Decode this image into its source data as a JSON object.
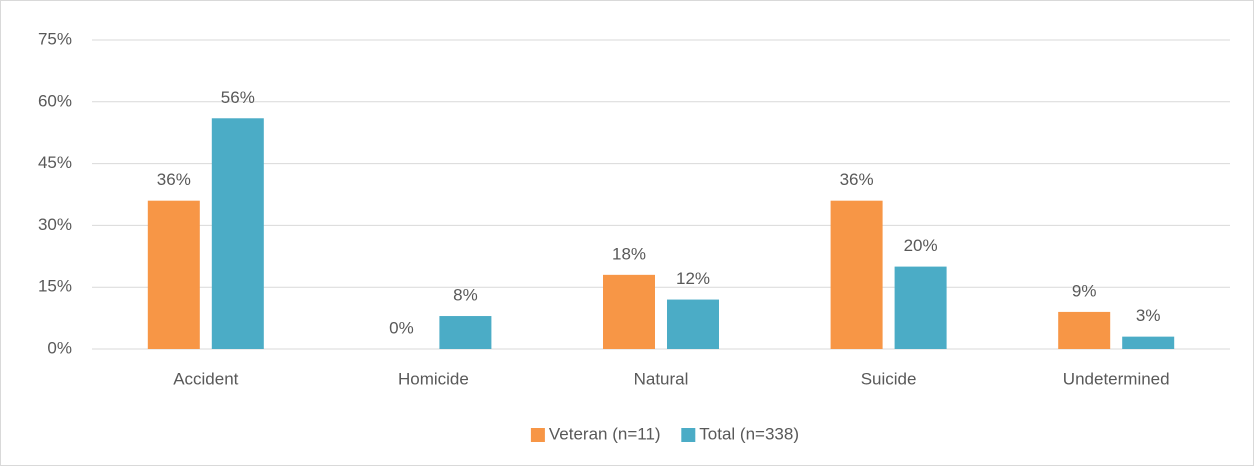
{
  "chart_data": {
    "type": "bar",
    "categories": [
      "Accident",
      "Homicide",
      "Natural",
      "Suicide",
      "Undetermined"
    ],
    "series": [
      {
        "name": "Veteran (n=11)",
        "color": "#f79646",
        "values": [
          36,
          0,
          18,
          36,
          9
        ],
        "value_labels": [
          "36%",
          "0%",
          "18%",
          "36%",
          "9%"
        ]
      },
      {
        "name": "Total (n=338)",
        "color": "#4bacc6",
        "values": [
          56,
          8,
          12,
          20,
          3
        ],
        "value_labels": [
          "56%",
          "8%",
          "12%",
          "20%",
          "3%"
        ]
      }
    ],
    "ylim": [
      0,
      75
    ],
    "yticks": [
      {
        "value": 0,
        "label": "0%"
      },
      {
        "value": 15,
        "label": "15%"
      },
      {
        "value": 30,
        "label": "30%"
      },
      {
        "value": 45,
        "label": "45%"
      },
      {
        "value": 60,
        "label": "60%"
      },
      {
        "value": 75,
        "label": "75%"
      }
    ],
    "grid": true,
    "legend": "bottom"
  }
}
